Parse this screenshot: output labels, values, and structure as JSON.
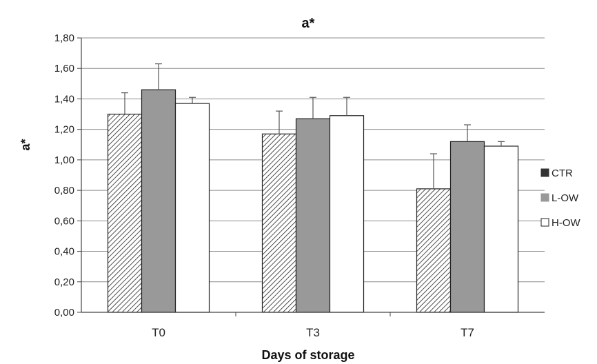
{
  "chart_data": {
    "type": "bar",
    "title": "a*",
    "xlabel": "Days of storage",
    "ylabel": "a*",
    "categories": [
      "T0",
      "T3",
      "T7"
    ],
    "ylim": [
      0,
      1.8
    ],
    "yticks": [
      "0,00",
      "0,20",
      "0,40",
      "0,60",
      "0,80",
      "1,00",
      "1,20",
      "1,40",
      "1,60",
      "1,80"
    ],
    "grid": true,
    "legend": "right",
    "series": [
      {
        "name": "CTR",
        "values": [
          1.3,
          1.17,
          0.81
        ],
        "errors": [
          0.14,
          0.15,
          0.23
        ],
        "fill": "hatched",
        "color": "#333333"
      },
      {
        "name": "L-OW",
        "values": [
          1.46,
          1.27,
          1.12
        ],
        "errors": [
          0.17,
          0.14,
          0.11
        ],
        "fill": "solid",
        "color": "#999999"
      },
      {
        "name": "H-OW",
        "values": [
          1.37,
          1.29,
          1.09
        ],
        "errors": [
          0.04,
          0.12,
          0.03
        ],
        "fill": "solid",
        "color": "#ffffff"
      }
    ]
  }
}
